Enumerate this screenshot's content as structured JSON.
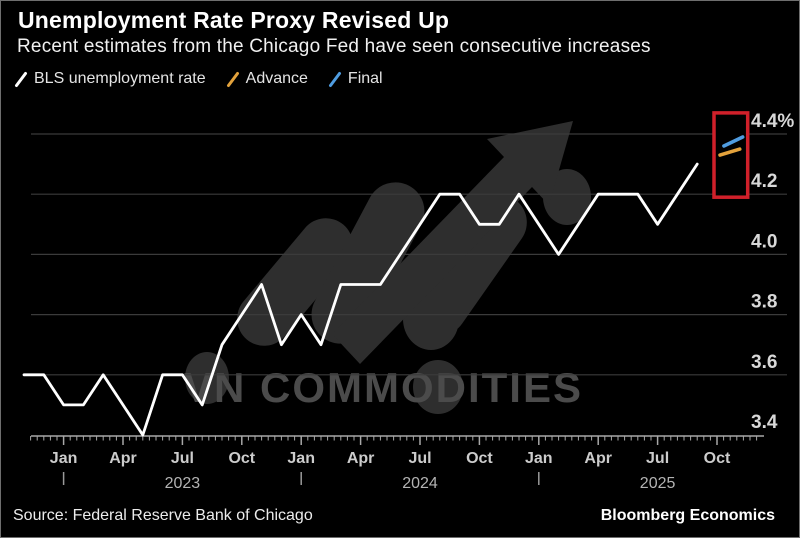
{
  "header": {
    "title": "Unemployment Rate Proxy Revised Up",
    "subtitle": "Recent estimates from the Chicago Fed have seen consecutive increases"
  },
  "legend": {
    "items": [
      {
        "id": "bls",
        "label": "BLS unemployment rate",
        "color": "#ffffff"
      },
      {
        "id": "advance",
        "label": "Advance",
        "color": "#e3a23c"
      },
      {
        "id": "final",
        "label": "Final",
        "color": "#4f9ce0"
      }
    ]
  },
  "watermark": {
    "text": "VN COMMODITIES"
  },
  "footer": {
    "source": "Source: Federal Reserve Bank of Chicago",
    "credit": "Bloomberg Economics"
  },
  "colors": {
    "background": "#000000",
    "frame_border": "#6e6e6e",
    "bls_line": "#ffffff",
    "advance": "#e3a23c",
    "final": "#4f9ce0",
    "highlight_box": "#d0202a",
    "gridline": "#3b3b3b",
    "axis": "#a8a8a8",
    "tick_text": "#cccccc",
    "year_text": "#b3b3b3",
    "ytick_text": "#d8d8d8",
    "watermark_shape": "#2e2e2e",
    "watermark_text": "#4b4b4b"
  },
  "chart_data": {
    "type": "line",
    "title": "Unemployment Rate Proxy Revised Up",
    "unit": "percent",
    "ylim": [
      3.4,
      4.4
    ],
    "grid": "horizontal",
    "legend_position": "top-left",
    "yticks": [
      {
        "value": 4.4,
        "label": "4.4%"
      },
      {
        "value": 4.2,
        "label": "4.2"
      },
      {
        "value": 4.0,
        "label": "4.0"
      },
      {
        "value": 3.8,
        "label": "3.8"
      },
      {
        "value": 3.6,
        "label": "3.6"
      },
      {
        "value": 3.4,
        "label": "3.4"
      }
    ],
    "x_start_month": "2022-11",
    "xticks": [
      {
        "label": "Jan",
        "month_index": 2
      },
      {
        "label": "Apr",
        "month_index": 5
      },
      {
        "label": "Jul",
        "month_index": 8
      },
      {
        "label": "Oct",
        "month_index": 11
      },
      {
        "label": "Jan",
        "month_index": 14
      },
      {
        "label": "Apr",
        "month_index": 17
      },
      {
        "label": "Jul",
        "month_index": 20
      },
      {
        "label": "Oct",
        "month_index": 23
      },
      {
        "label": "Jan",
        "month_index": 26
      },
      {
        "label": "Apr",
        "month_index": 29
      },
      {
        "label": "Jul",
        "month_index": 32
      },
      {
        "label": "Oct",
        "month_index": 35
      }
    ],
    "years": [
      {
        "label": "2023",
        "center_index": 8,
        "divider_index": 2
      },
      {
        "label": "2024",
        "center_index": 20,
        "divider_index": 14
      },
      {
        "label": "2025",
        "center_index": 32,
        "divider_index": 26
      }
    ],
    "series": [
      {
        "name": "BLS unemployment rate",
        "type": "line",
        "color": "#ffffff",
        "start_month": "2022-11",
        "end_month": "2025-09",
        "monthly_values": [
          3.6,
          3.6,
          3.5,
          3.5,
          3.6,
          3.5,
          3.4,
          3.6,
          3.6,
          3.5,
          3.7,
          3.8,
          3.9,
          3.7,
          3.8,
          3.7,
          3.9,
          3.9,
          3.9,
          4.0,
          4.1,
          4.2,
          4.2,
          4.1,
          4.1,
          4.2,
          4.1,
          4.0,
          4.1,
          4.2,
          4.2,
          4.2,
          4.1,
          4.2,
          4.3
        ]
      },
      {
        "name": "Advance",
        "type": "line-segment",
        "color": "#e3a23c",
        "month_index_range": [
          35.15,
          36.15
        ],
        "values": [
          4.33,
          4.35
        ]
      },
      {
        "name": "Final",
        "type": "line-segment",
        "color": "#4f9ce0",
        "month_index_range": [
          35.35,
          36.3
        ],
        "values": [
          4.36,
          4.39
        ]
      }
    ],
    "annotations": [
      {
        "type": "highlight-box",
        "color": "#d0202a",
        "month_index_range": [
          34.85,
          36.55
        ],
        "value_range": [
          4.19,
          4.47
        ]
      }
    ]
  }
}
